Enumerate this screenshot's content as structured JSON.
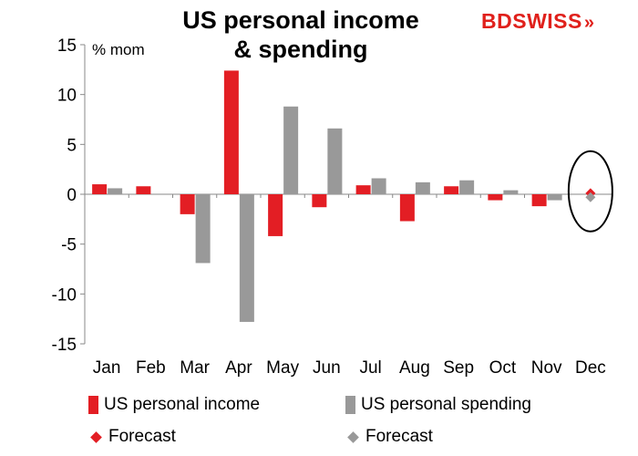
{
  "header": {
    "title_line1": "US personal income",
    "title_line2": "& spending",
    "logo_part1": "BD",
    "logo_part2": "SWISS",
    "logo_chevron": "»",
    "unit_label": "% mom"
  },
  "legend": {
    "income": "US personal income",
    "spending": "US personal spending",
    "income_forecast": "Forecast",
    "spending_forecast": "Forecast"
  },
  "colors": {
    "income": "#e31e24",
    "spending": "#999999",
    "axis": "#888888",
    "brand": "#e0201b"
  },
  "chart_data": {
    "type": "bar",
    "categories": [
      "Jan",
      "Feb",
      "Mar",
      "Apr",
      "May",
      "Jun",
      "Jul",
      "Aug",
      "Sep",
      "Oct",
      "Nov",
      "Dec"
    ],
    "series": [
      {
        "name": "US personal income",
        "values": [
          1.0,
          0.8,
          -2.0,
          12.4,
          -4.2,
          -1.3,
          0.9,
          -2.7,
          0.8,
          -0.6,
          -1.2,
          null
        ]
      },
      {
        "name": "US personal spending",
        "values": [
          0.6,
          null,
          -6.9,
          -12.8,
          8.8,
          6.6,
          1.6,
          1.2,
          1.4,
          0.4,
          -0.6,
          null
        ]
      }
    ],
    "forecast": [
      {
        "name": "Forecast",
        "category": "Dec",
        "value": 0.1
      },
      {
        "name": "Forecast",
        "category": "Dec",
        "value": -0.3
      }
    ],
    "ylim": [
      -15,
      15
    ],
    "yticks": [
      -15,
      -10,
      -5,
      0,
      5,
      10,
      15
    ],
    "ytick_labels": [
      "-15",
      "-10",
      "-5",
      "0",
      "5",
      "10",
      "15"
    ],
    "annotation": "circle around Dec forecasts",
    "legend_position": "bottom"
  }
}
